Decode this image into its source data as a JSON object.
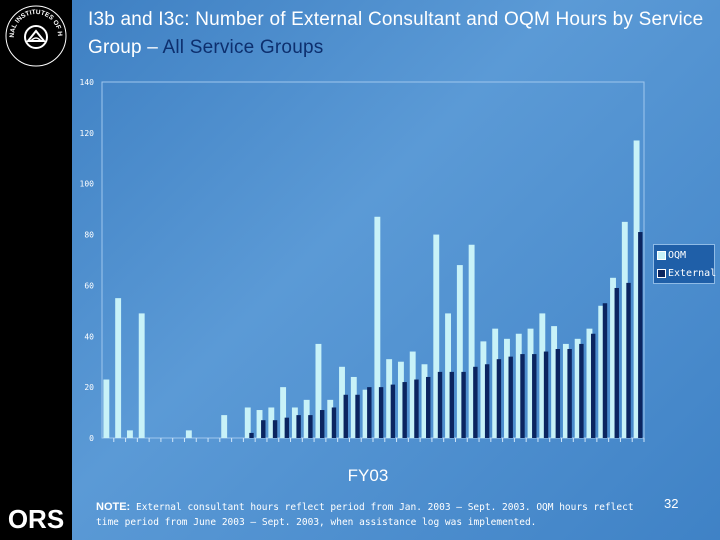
{
  "title": {
    "part1": "I3b and I3c:",
    "part2": "Number of External Consultant and OQM Hours by Service Group –",
    "part3": "All Service Groups"
  },
  "logos": {
    "nih": "NATIONAL INSTITUTES OF HEALTH",
    "ors": "ORS"
  },
  "colors": {
    "oqm": "#c8f2f8",
    "external": "#0b2560",
    "accent": "#0d2f6e"
  },
  "chart_data": {
    "type": "bar",
    "stacked": false,
    "xlabel": "FY03",
    "ylabel": "",
    "ylim": [
      0,
      140
    ],
    "yticks": [
      "0",
      "20",
      "40",
      "60",
      "80",
      "100",
      "120",
      "140"
    ],
    "grid": false,
    "legend_position": "right",
    "series": [
      {
        "name": "OQM",
        "color": "#c8f2f8",
        "values": [
          23,
          55,
          3,
          49,
          0,
          0,
          0,
          3,
          0,
          0,
          9,
          0,
          12,
          11,
          12,
          20,
          12,
          15,
          37,
          15,
          28,
          24,
          19,
          87,
          31,
          30,
          34,
          29,
          80,
          49,
          68,
          76,
          38,
          43,
          39,
          41,
          43,
          49,
          44,
          37,
          39,
          43,
          52,
          63,
          85,
          117
        ]
      },
      {
        "name": "External",
        "color": "#0b2560",
        "values": [
          0,
          0,
          0,
          0,
          0,
          0,
          0,
          0,
          0,
          0,
          0,
          0,
          2,
          7,
          7,
          8,
          9,
          9,
          11,
          12,
          17,
          17,
          20,
          20,
          21,
          22,
          23,
          24,
          26,
          26,
          26,
          28,
          29,
          31,
          32,
          33,
          33,
          34,
          35,
          35,
          37,
          41,
          53,
          59,
          61,
          81
        ]
      }
    ]
  },
  "note": {
    "label": "NOTE:",
    "text": "External consultant hours reflect period from Jan. 2003 – Sept. 2003. OQM hours reflect time period from June 2003 – Sept. 2003, when assistance log was implemented."
  },
  "page_number": "32"
}
